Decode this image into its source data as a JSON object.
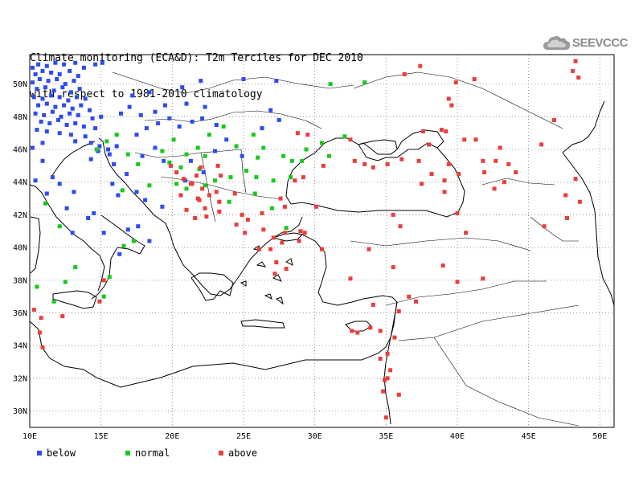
{
  "title": {
    "line1": "Climate monitoring (ECA&D): T2m Terciles for DEC 2010",
    "line2": "with respect to 1981-2010 climatology"
  },
  "logo": {
    "text": "SEEVCCC",
    "icon": "cloud-icon"
  },
  "colors": {
    "below": "#2e4bf0",
    "normal": "#18c81c",
    "above": "#ec3c3c",
    "grid": "#808080",
    "coast": "#000000"
  },
  "legend": [
    {
      "key": "below",
      "label": "below"
    },
    {
      "key": "normal",
      "label": "normal"
    },
    {
      "key": "above",
      "label": "above"
    }
  ],
  "map": {
    "lon_range": [
      10,
      51
    ],
    "lat_range": [
      29,
      51.8
    ],
    "lon_ticks": [
      "10E",
      "15E",
      "20E",
      "25E",
      "30E",
      "35E",
      "40E",
      "45E",
      "50E"
    ],
    "lat_ticks": [
      "30N",
      "32N",
      "34N",
      "36N",
      "38N",
      "40N",
      "42N",
      "44N",
      "46N",
      "48N",
      "50N"
    ],
    "gridlines": "dotted",
    "stations": {
      "below": [
        [
          10.2,
          51.0
        ],
        [
          10.6,
          51.2
        ],
        [
          11.2,
          51.1
        ],
        [
          11.8,
          51.3
        ],
        [
          12.4,
          51.2
        ],
        [
          13.2,
          51.3
        ],
        [
          13.8,
          51.0
        ],
        [
          14.6,
          51.2
        ],
        [
          15.1,
          51.3
        ],
        [
          10.4,
          50.6
        ],
        [
          10.9,
          50.8
        ],
        [
          11.5,
          50.7
        ],
        [
          12.1,
          50.6
        ],
        [
          12.8,
          50.8
        ],
        [
          13.4,
          50.5
        ],
        [
          10.2,
          50.1
        ],
        [
          10.7,
          50.3
        ],
        [
          11.3,
          50.2
        ],
        [
          11.9,
          50.3
        ],
        [
          12.5,
          50.0
        ],
        [
          13.1,
          50.2
        ],
        [
          10.5,
          49.7
        ],
        [
          11.1,
          49.8
        ],
        [
          11.7,
          49.6
        ],
        [
          12.3,
          49.8
        ],
        [
          12.9,
          49.5
        ],
        [
          13.5,
          49.7
        ],
        [
          10.3,
          49.2
        ],
        [
          10.9,
          49.1
        ],
        [
          11.5,
          49.3
        ],
        [
          12.1,
          49.2
        ],
        [
          12.7,
          49.0
        ],
        [
          13.3,
          49.2
        ],
        [
          13.9,
          49.1
        ],
        [
          10.6,
          48.7
        ],
        [
          11.2,
          48.8
        ],
        [
          11.8,
          48.6
        ],
        [
          12.4,
          48.7
        ],
        [
          13.0,
          48.5
        ],
        [
          13.6,
          48.7
        ],
        [
          14.2,
          48.4
        ],
        [
          10.4,
          48.2
        ],
        [
          11.0,
          48.1
        ],
        [
          11.6,
          48.3
        ],
        [
          12.2,
          48.0
        ],
        [
          12.8,
          48.2
        ],
        [
          13.4,
          48.1
        ],
        [
          14.4,
          47.9
        ],
        [
          15.0,
          48.0
        ],
        [
          10.8,
          47.7
        ],
        [
          11.4,
          47.6
        ],
        [
          12.0,
          47.8
        ],
        [
          12.6,
          47.5
        ],
        [
          13.2,
          47.6
        ],
        [
          13.8,
          47.4
        ],
        [
          14.6,
          47.3
        ],
        [
          10.5,
          47.2
        ],
        [
          11.2,
          47.1
        ],
        [
          12.1,
          47.0
        ],
        [
          12.9,
          46.9
        ],
        [
          13.9,
          46.8
        ],
        [
          10.9,
          46.4
        ],
        [
          13.2,
          46.5
        ],
        [
          14.3,
          46.4
        ],
        [
          14.9,
          46.2
        ],
        [
          15.5,
          46.0
        ],
        [
          16.1,
          46.2
        ],
        [
          14.8,
          45.9
        ],
        [
          15.6,
          45.7
        ],
        [
          14.3,
          45.4
        ],
        [
          15.9,
          45.1
        ],
        [
          17.5,
          46.9
        ],
        [
          18.2,
          47.3
        ],
        [
          19.0,
          47.6
        ],
        [
          19.8,
          47.9
        ],
        [
          20.5,
          47.4
        ],
        [
          21.4,
          47.7
        ],
        [
          22.1,
          47.9
        ],
        [
          23.1,
          47.5
        ],
        [
          16.4,
          48.2
        ],
        [
          17.0,
          48.6
        ],
        [
          17.8,
          48.1
        ],
        [
          18.8,
          48.3
        ],
        [
          19.5,
          48.7
        ],
        [
          21.0,
          48.8
        ],
        [
          22.3,
          48.6
        ],
        [
          17.2,
          49.3
        ],
        [
          18.4,
          49.5
        ],
        [
          20.7,
          49.8
        ],
        [
          22.0,
          50.2
        ],
        [
          25.0,
          50.3
        ],
        [
          27.3,
          50.2
        ],
        [
          26.9,
          48.4
        ],
        [
          27.5,
          47.8
        ],
        [
          26.3,
          47.3
        ],
        [
          23.0,
          45.9
        ],
        [
          23.8,
          46.6
        ],
        [
          24.9,
          45.6
        ],
        [
          21.3,
          45.3
        ],
        [
          22.2,
          44.6
        ],
        [
          20.9,
          44.1
        ],
        [
          18.8,
          46.1
        ],
        [
          17.9,
          45.6
        ],
        [
          19.4,
          45.3
        ],
        [
          16.8,
          44.5
        ],
        [
          15.8,
          43.9
        ],
        [
          17.5,
          43.4
        ],
        [
          18.1,
          42.9
        ],
        [
          16.2,
          43.2
        ],
        [
          19.3,
          42.5
        ],
        [
          13.1,
          43.4
        ],
        [
          12.1,
          43.9
        ],
        [
          11.2,
          43.3
        ],
        [
          12.6,
          42.4
        ],
        [
          14.1,
          41.8
        ],
        [
          15.2,
          40.9
        ],
        [
          16.9,
          41.1
        ],
        [
          14.5,
          42.1
        ],
        [
          13.0,
          40.9
        ],
        [
          17.6,
          41.3
        ],
        [
          18.4,
          40.4
        ],
        [
          16.3,
          39.6
        ],
        [
          10.9,
          45.3
        ],
        [
          10.2,
          46.1
        ],
        [
          11.6,
          44.3
        ],
        [
          10.4,
          44.1
        ]
      ],
      "normal": [
        [
          14.7,
          46.0
        ],
        [
          15.4,
          46.5
        ],
        [
          16.1,
          46.9
        ],
        [
          16.9,
          45.7
        ],
        [
          17.6,
          45.1
        ],
        [
          19.3,
          45.9
        ],
        [
          20.1,
          46.6
        ],
        [
          21.0,
          45.7
        ],
        [
          21.8,
          46.1
        ],
        [
          22.6,
          46.9
        ],
        [
          23.6,
          47.4
        ],
        [
          24.5,
          46.2
        ],
        [
          25.7,
          46.9
        ],
        [
          26.4,
          46.1
        ],
        [
          27.8,
          45.6
        ],
        [
          28.4,
          45.3
        ],
        [
          29.1,
          45.3
        ],
        [
          26.0,
          45.5
        ],
        [
          25.2,
          44.7
        ],
        [
          24.1,
          44.3
        ],
        [
          23.0,
          44.1
        ],
        [
          22.3,
          43.8
        ],
        [
          20.6,
          44.9
        ],
        [
          19.8,
          45.2
        ],
        [
          20.3,
          43.9
        ],
        [
          25.9,
          44.3
        ],
        [
          27.1,
          44.1
        ],
        [
          28.3,
          44.3
        ],
        [
          25.8,
          43.3
        ],
        [
          24.0,
          42.8
        ],
        [
          27.0,
          42.4
        ],
        [
          28.0,
          41.2
        ],
        [
          30.5,
          46.4
        ],
        [
          31.1,
          50.0
        ],
        [
          33.5,
          50.1
        ],
        [
          32.1,
          46.8
        ],
        [
          16.5,
          43.5
        ],
        [
          18.4,
          43.8
        ],
        [
          16.6,
          40.1
        ],
        [
          17.3,
          40.4
        ],
        [
          11.1,
          42.7
        ],
        [
          10.5,
          37.6
        ],
        [
          12.5,
          37.9
        ],
        [
          13.2,
          38.8
        ],
        [
          15.2,
          37.0
        ],
        [
          15.6,
          38.2
        ],
        [
          12.1,
          41.3
        ],
        [
          11.7,
          36.7
        ],
        [
          21.9,
          44.8
        ],
        [
          22.3,
          45.6
        ],
        [
          21.0,
          43.6
        ],
        [
          29.4,
          46.0
        ],
        [
          31.0,
          45.6
        ]
      ],
      "above": [
        [
          19.9,
          45.0
        ],
        [
          20.3,
          44.6
        ],
        [
          20.8,
          44.2
        ],
        [
          21.3,
          43.9
        ],
        [
          21.7,
          44.4
        ],
        [
          22.1,
          43.6
        ],
        [
          22.6,
          43.2
        ],
        [
          23.1,
          43.4
        ],
        [
          21.9,
          42.9
        ],
        [
          21.0,
          42.3
        ],
        [
          21.6,
          41.8
        ],
        [
          22.4,
          41.9
        ],
        [
          23.3,
          42.2
        ],
        [
          24.5,
          41.4
        ],
        [
          25.3,
          41.7
        ],
        [
          26.3,
          42.1
        ],
        [
          26.4,
          41.1
        ],
        [
          27.1,
          40.6
        ],
        [
          27.7,
          40.3
        ],
        [
          26.9,
          39.9
        ],
        [
          27.3,
          39.1
        ],
        [
          27.9,
          40.9
        ],
        [
          28.9,
          40.4
        ],
        [
          29.3,
          40.9
        ],
        [
          30.5,
          39.9
        ],
        [
          32.5,
          38.1
        ],
        [
          35.5,
          38.8
        ],
        [
          34.1,
          36.5
        ],
        [
          34.6,
          34.9
        ],
        [
          33.0,
          34.8
        ],
        [
          32.6,
          34.9
        ],
        [
          35.1,
          33.5
        ],
        [
          35.3,
          32.5
        ],
        [
          35.1,
          32.0
        ],
        [
          34.9,
          31.9
        ],
        [
          34.8,
          31.2
        ],
        [
          35.0,
          29.6
        ],
        [
          34.6,
          33.2
        ],
        [
          35.6,
          34.5
        ],
        [
          29.2,
          44.3
        ],
        [
          28.6,
          44.1
        ],
        [
          27.9,
          42.5
        ],
        [
          27.6,
          43.0
        ],
        [
          30.6,
          45.0
        ],
        [
          33.5,
          45.1
        ],
        [
          32.8,
          45.3
        ],
        [
          34.1,
          44.9
        ],
        [
          35.1,
          45.1
        ],
        [
          36.1,
          45.4
        ],
        [
          37.3,
          45.3
        ],
        [
          38.0,
          46.3
        ],
        [
          39.2,
          47.1
        ],
        [
          40.5,
          46.6
        ],
        [
          41.3,
          46.6
        ],
        [
          43.0,
          46.1
        ],
        [
          45.9,
          46.3
        ],
        [
          38.2,
          44.5
        ],
        [
          39.4,
          45.1
        ],
        [
          41.8,
          45.3
        ],
        [
          42.7,
          45.3
        ],
        [
          43.6,
          45.1
        ],
        [
          44.1,
          44.6
        ],
        [
          39.1,
          44.1
        ],
        [
          40.1,
          44.5
        ],
        [
          41.9,
          44.6
        ],
        [
          43.3,
          44.0
        ],
        [
          42.6,
          43.6
        ],
        [
          47.6,
          43.2
        ],
        [
          48.3,
          44.2
        ],
        [
          48.6,
          42.8
        ],
        [
          47.7,
          41.8
        ],
        [
          46.1,
          41.3
        ],
        [
          39.1,
          43.4
        ],
        [
          40.0,
          42.1
        ],
        [
          40.6,
          40.9
        ],
        [
          37.5,
          43.9
        ],
        [
          32.5,
          46.6
        ],
        [
          36.3,
          50.6
        ],
        [
          37.4,
          51.1
        ],
        [
          39.9,
          50.1
        ],
        [
          39.4,
          49.1
        ],
        [
          39.6,
          48.7
        ],
        [
          41.2,
          50.3
        ],
        [
          46.8,
          47.8
        ],
        [
          48.1,
          50.8
        ],
        [
          48.3,
          51.4
        ],
        [
          48.5,
          50.4
        ],
        [
          26.1,
          39.9
        ],
        [
          25.1,
          40.9
        ],
        [
          22.0,
          44.9
        ],
        [
          23.4,
          44.4
        ],
        [
          20.6,
          43.2
        ],
        [
          21.8,
          43.0
        ],
        [
          22.3,
          42.4
        ],
        [
          24.9,
          42.0
        ],
        [
          10.3,
          36.2
        ],
        [
          10.8,
          35.7
        ],
        [
          10.7,
          34.8
        ],
        [
          10.9,
          33.9
        ],
        [
          12.3,
          35.8
        ],
        [
          14.9,
          36.7
        ],
        [
          15.2,
          38.0
        ],
        [
          35.9,
          31.0
        ],
        [
          33.9,
          35.1
        ],
        [
          39.0,
          38.9
        ],
        [
          41.8,
          38.1
        ],
        [
          40.0,
          37.9
        ],
        [
          37.1,
          36.7
        ],
        [
          35.9,
          36.1
        ],
        [
          36.6,
          37.0
        ],
        [
          28.0,
          38.7
        ],
        [
          27.2,
          38.4
        ],
        [
          29.0,
          41.0
        ],
        [
          33.8,
          39.9
        ],
        [
          35.5,
          42.0
        ],
        [
          36.0,
          41.3
        ],
        [
          30.1,
          42.5
        ],
        [
          29.5,
          46.9
        ],
        [
          28.8,
          47.0
        ],
        [
          23.2,
          45.0
        ],
        [
          24.4,
          43.3
        ],
        [
          21.4,
          43.9
        ],
        [
          23.3,
          42.8
        ],
        [
          37.6,
          47.1
        ],
        [
          38.9,
          47.2
        ]
      ]
    }
  }
}
